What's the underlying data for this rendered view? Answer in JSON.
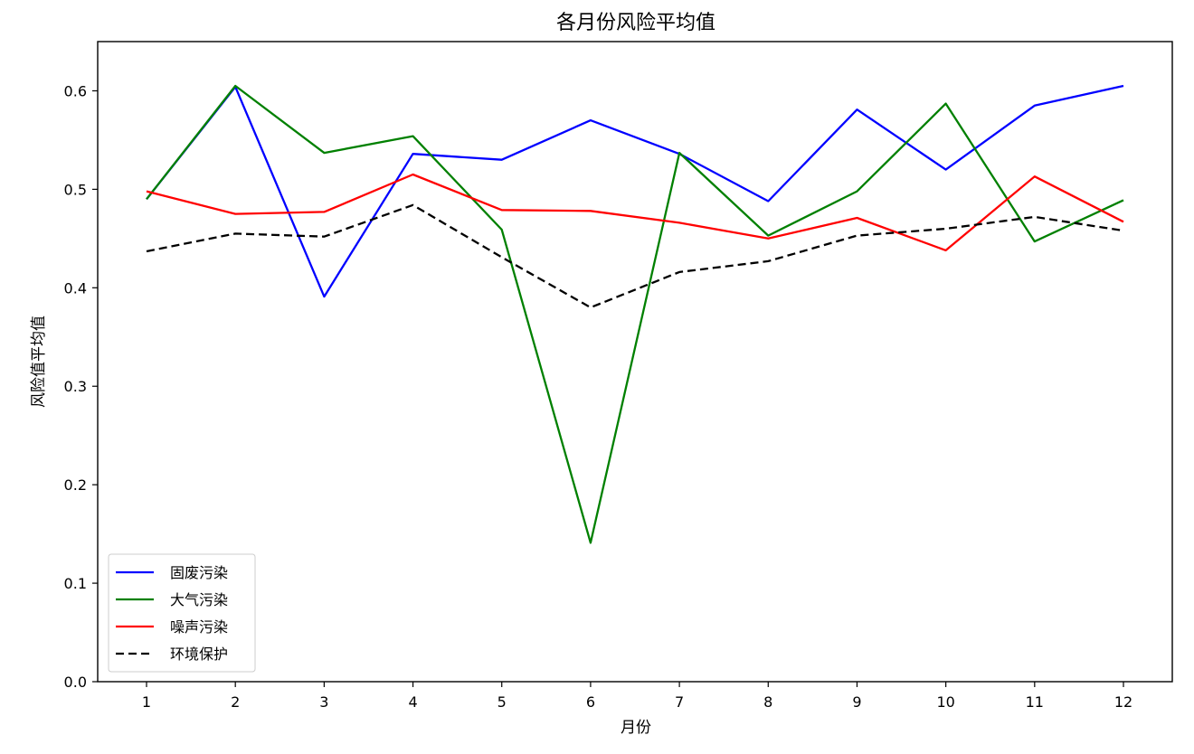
{
  "chart_data": {
    "type": "line",
    "title": "各月份风险平均值",
    "xlabel": "月份",
    "ylabel": "风险值平均值",
    "x": [
      1,
      2,
      3,
      4,
      5,
      6,
      7,
      8,
      9,
      10,
      11,
      12
    ],
    "x_tick_labels": [
      "1",
      "2",
      "3",
      "4",
      "5",
      "6",
      "7",
      "8",
      "9",
      "10",
      "11",
      "12"
    ],
    "y_ticks": [
      0.0,
      0.1,
      0.2,
      0.3,
      0.4,
      0.5,
      0.6
    ],
    "y_tick_labels": [
      "0.0",
      "0.1",
      "0.2",
      "0.3",
      "0.4",
      "0.5",
      "0.6"
    ],
    "xlim": [
      0.45,
      12.55
    ],
    "ylim": [
      0.0,
      0.65
    ],
    "grid": false,
    "legend_position": "lower-left",
    "series": [
      {
        "name": "固废污染",
        "color": "#0000ff",
        "dash": "solid",
        "values": [
          0.49,
          0.604,
          0.391,
          0.536,
          0.53,
          0.57,
          0.536,
          0.488,
          0.581,
          0.52,
          0.585,
          0.605
        ]
      },
      {
        "name": "大气污染",
        "color": "#008000",
        "dash": "solid",
        "values": [
          0.49,
          0.605,
          0.537,
          0.554,
          0.459,
          0.141,
          0.537,
          0.453,
          0.498,
          0.587,
          0.447,
          0.489
        ]
      },
      {
        "name": "噪声污染",
        "color": "#ff0000",
        "dash": "solid",
        "values": [
          0.498,
          0.475,
          0.477,
          0.515,
          0.479,
          0.478,
          0.466,
          0.45,
          0.471,
          0.438,
          0.513,
          0.467
        ]
      },
      {
        "name": "环境保护",
        "color": "#000000",
        "dash": "dashed",
        "values": [
          0.437,
          0.455,
          0.452,
          0.484,
          0.431,
          0.38,
          0.416,
          0.427,
          0.453,
          0.46,
          0.472,
          0.458
        ]
      }
    ]
  }
}
